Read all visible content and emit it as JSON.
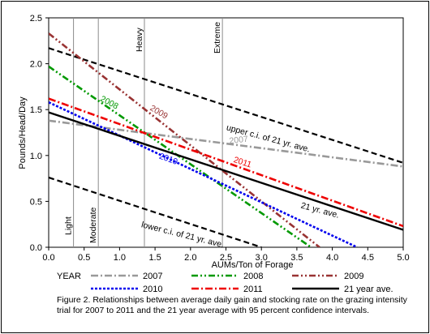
{
  "chart_data": {
    "type": "line",
    "title": "",
    "xlabel": "AUMs/Ton of Forage",
    "ylabel": "Pounds/Head/Day",
    "xlim": [
      0,
      5
    ],
    "ylim": [
      0,
      2.5
    ],
    "xticks": [
      "0.0",
      "0.5",
      "1.0",
      "1.5",
      "2.0",
      "2.5",
      "3.0",
      "3.5",
      "4.0",
      "4.5",
      "5.0"
    ],
    "yticks": [
      "0.0",
      "0.5",
      "1.0",
      "1.5",
      "2.0",
      "2.5"
    ],
    "grid": false,
    "legend_title": "YEAR",
    "legend_position": "bottom",
    "series": [
      {
        "name": "2007",
        "color": "#999999",
        "dash": "dashdot",
        "x": [
          0,
          5.0
        ],
        "y": [
          1.38,
          0.88
        ]
      },
      {
        "name": "2008",
        "color": "#009900",
        "dash": "dashdotdot",
        "x": [
          0,
          3.7
        ],
        "y": [
          1.97,
          0.0
        ]
      },
      {
        "name": "2009",
        "color": "#993333",
        "dash": "dashdotdot",
        "x": [
          0,
          3.82
        ],
        "y": [
          2.33,
          0.0
        ]
      },
      {
        "name": "2010",
        "color": "#0000ee",
        "dash": "dotted",
        "x": [
          0,
          4.35
        ],
        "y": [
          1.58,
          0.0
        ]
      },
      {
        "name": "2011",
        "color": "#ee0000",
        "dash": "dashdot",
        "x": [
          0,
          5.0
        ],
        "y": [
          1.62,
          0.23
        ]
      },
      {
        "name": "21 year ave.",
        "color": "#000000",
        "dash": "solid",
        "x": [
          0,
          5.0
        ],
        "y": [
          1.47,
          0.19
        ]
      }
    ],
    "confidence_bands": [
      {
        "name": "upper c.i. of 21 yr. ave.",
        "color": "#000000",
        "dash": "dashed",
        "x": [
          0,
          5.0
        ],
        "y": [
          2.17,
          0.92
        ]
      },
      {
        "name": "lower c.i. of 21 yr. ave.",
        "color": "#000000",
        "dash": "dashed",
        "x": [
          0,
          3.0
        ],
        "y": [
          0.76,
          0.0
        ]
      }
    ],
    "intensity_lines": [
      {
        "label": "Light",
        "x": 0.35
      },
      {
        "label": "Moderate",
        "x": 0.7
      },
      {
        "label": "Heavy",
        "x": 1.35
      },
      {
        "label": "Extreme",
        "x": 2.45
      }
    ],
    "annotations": [
      {
        "text": "2007",
        "color": "#999999"
      },
      {
        "text": "2008",
        "color": "#009900"
      },
      {
        "text": "2009",
        "color": "#993333"
      },
      {
        "text": "2010",
        "color": "#0000ee"
      },
      {
        "text": "2011",
        "color": "#ee0000"
      },
      {
        "text": "21 yr. ave.",
        "color": "#000000"
      },
      {
        "text": "upper c.i. of 21 yr. ave.",
        "color": "#000000"
      },
      {
        "text": "lower c.i. of 21 yr. ave.",
        "color": "#000000"
      }
    ]
  },
  "caption": {
    "line1": "Figure 2. Relationships between average daily gain and stocking rate on the grazing intensity",
    "line2": "trial for 2007 to 2011 and the 21 year average with 95 percent confidence intervals."
  }
}
